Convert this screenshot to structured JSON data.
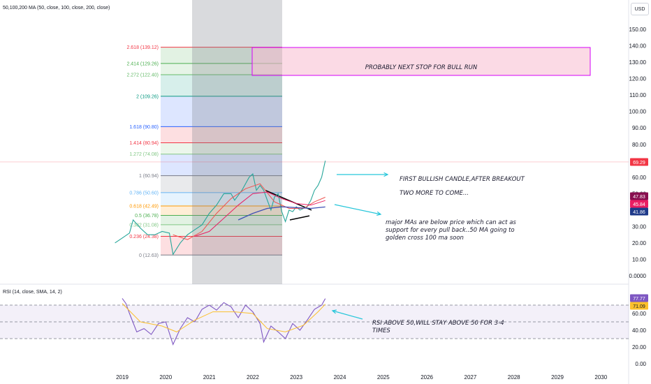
{
  "currency_button": "USD",
  "chart_data": [
    {
      "type": "line",
      "title": "50,100,200 MA (50, close, 100, close, 200, close)",
      "y_ticks": [
        "150.00",
        "140.00",
        "130.00",
        "120.00",
        "110.00",
        "100.00",
        "90.00",
        "80.00",
        "70.00",
        "60.00",
        "50.00",
        "40.00",
        "30.00",
        "20.00",
        "10.00",
        "0.0000"
      ],
      "x_ticks": [
        "2019",
        "2020",
        "2021",
        "2022",
        "2023",
        "2024",
        "2025",
        "2026",
        "2027",
        "2028",
        "2029",
        "2030"
      ],
      "price_labels": [
        {
          "text": "69.29",
          "color": "#f23645"
        },
        {
          "text": "47.83",
          "color": "#880e4f"
        },
        {
          "text": "45.84",
          "color": "#e91e63"
        },
        {
          "text": "41.86",
          "color": "#1e3a8a"
        }
      ],
      "fib_levels": [
        {
          "ratio": 0,
          "label": "0 (12.63)",
          "color": "#787b86"
        },
        {
          "ratio": 0.236,
          "label": "0.236 (24.38)",
          "color": "#f23645"
        },
        {
          "ratio": 0.382,
          "label": "0.382 (31.08)",
          "color": "#81c784"
        },
        {
          "ratio": 0.5,
          "label": "0.5 (36.78)",
          "color": "#4caf50"
        },
        {
          "ratio": 0.618,
          "label": "0.618 (42.49)",
          "color": "#ff9800"
        },
        {
          "ratio": 0.786,
          "label": "0.786 (50.60)",
          "color": "#64b5f6"
        },
        {
          "ratio": 1,
          "label": "1 (60.94)",
          "color": "#787b86"
        },
        {
          "ratio": 1.272,
          "label": "1.272 (74.08)",
          "color": "#81c784"
        },
        {
          "ratio": 1.414,
          "label": "1.414 (80.94)",
          "color": "#f23645"
        },
        {
          "ratio": 1.618,
          "label": "1.618 (90.80)",
          "color": "#2962ff"
        },
        {
          "ratio": 2,
          "label": "2 (109.26)",
          "color": "#089981"
        },
        {
          "ratio": 2.272,
          "label": "2.272 (122.40)",
          "color": "#66bb6a"
        },
        {
          "ratio": 2.414,
          "label": "2.414 (129.26)",
          "color": "#4caf50"
        },
        {
          "ratio": 2.618,
          "label": "2.618 (139.12)",
          "color": "#f23645"
        }
      ],
      "series": [
        {
          "name": "Price",
          "values": [
            {
              "x": "2018-11",
              "y": 20
            },
            {
              "x": "2019-01",
              "y": 23
            },
            {
              "x": "2019-03",
              "y": 26
            },
            {
              "x": "2019-04",
              "y": 34
            },
            {
              "x": "2019-06",
              "y": 29
            },
            {
              "x": "2019-08",
              "y": 25
            },
            {
              "x": "2019-10",
              "y": 25
            },
            {
              "x": "2019-12",
              "y": 27
            },
            {
              "x": "2020-02",
              "y": 26
            },
            {
              "x": "2020-03",
              "y": 13
            },
            {
              "x": "2020-05",
              "y": 20
            },
            {
              "x": "2020-07",
              "y": 25
            },
            {
              "x": "2020-09",
              "y": 28
            },
            {
              "x": "2020-11",
              "y": 31
            },
            {
              "x": "2021-01",
              "y": 38
            },
            {
              "x": "2021-03",
              "y": 43
            },
            {
              "x": "2021-05",
              "y": 50
            },
            {
              "x": "2021-07",
              "y": 50
            },
            {
              "x": "2021-08",
              "y": 46
            },
            {
              "x": "2021-10",
              "y": 52
            },
            {
              "x": "2021-12",
              "y": 60
            },
            {
              "x": "2022-01",
              "y": 62
            },
            {
              "x": "2022-02",
              "y": 52
            },
            {
              "x": "2022-03",
              "y": 55
            },
            {
              "x": "2022-04",
              "y": 52
            },
            {
              "x": "2022-05",
              "y": 46
            },
            {
              "x": "2022-06",
              "y": 40
            },
            {
              "x": "2022-07",
              "y": 48
            },
            {
              "x": "2022-08",
              "y": 50
            },
            {
              "x": "2022-09",
              "y": 39
            },
            {
              "x": "2022-10",
              "y": 33
            },
            {
              "x": "2022-11",
              "y": 40
            },
            {
              "x": "2022-12",
              "y": 39
            },
            {
              "x": "2023-01",
              "y": 42
            },
            {
              "x": "2023-02",
              "y": 40
            },
            {
              "x": "2023-03",
              "y": 41
            },
            {
              "x": "2023-04",
              "y": 42
            },
            {
              "x": "2023-05",
              "y": 46
            },
            {
              "x": "2023-06",
              "y": 52
            },
            {
              "x": "2023-07",
              "y": 55
            },
            {
              "x": "2023-08",
              "y": 60
            },
            {
              "x": "2023-09",
              "y": 70
            }
          ]
        },
        {
          "name": "MA 50",
          "values": [
            {
              "x": "2020-03",
              "y": 25
            },
            {
              "x": "2020-07",
              "y": 22
            },
            {
              "x": "2020-11",
              "y": 27
            },
            {
              "x": "2021-03",
              "y": 38
            },
            {
              "x": "2021-07",
              "y": 47
            },
            {
              "x": "2021-11",
              "y": 53
            },
            {
              "x": "2022-03",
              "y": 56
            },
            {
              "x": "2022-07",
              "y": 45
            },
            {
              "x": "2022-11",
              "y": 41
            },
            {
              "x": "2023-03",
              "y": 41
            },
            {
              "x": "2023-06",
              "y": 45
            },
            {
              "x": "2023-09",
              "y": 47.8
            }
          ]
        },
        {
          "name": "MA 100",
          "values": [
            {
              "x": "2020-09",
              "y": 24
            },
            {
              "x": "2021-01",
              "y": 27
            },
            {
              "x": "2021-05",
              "y": 35
            },
            {
              "x": "2021-09",
              "y": 43
            },
            {
              "x": "2022-01",
              "y": 50
            },
            {
              "x": "2022-05",
              "y": 51
            },
            {
              "x": "2022-09",
              "y": 47
            },
            {
              "x": "2023-01",
              "y": 44
            },
            {
              "x": "2023-05",
              "y": 43
            },
            {
              "x": "2023-09",
              "y": 45.8
            }
          ]
        },
        {
          "name": "MA 200",
          "values": [
            {
              "x": "2021-09",
              "y": 34
            },
            {
              "x": "2022-01",
              "y": 38
            },
            {
              "x": "2022-05",
              "y": 41
            },
            {
              "x": "2022-09",
              "y": 42
            },
            {
              "x": "2023-01",
              "y": 41.5
            },
            {
              "x": "2023-05",
              "y": 41
            },
            {
              "x": "2023-09",
              "y": 41.9
            }
          ]
        }
      ],
      "annotations": [
        "PROBABLY NEXT STOP FOR BULL RUN",
        "FIRST BULLISH CANDLE,AFTER BREAKOUT",
        "TWO MORE TO COME...",
        "major MAs are below price which can act as",
        "support for every pull back..50 MA going to",
        "golden cross 100 ma soon"
      ]
    },
    {
      "type": "line",
      "title": "RSI (14, close, SMA, 14, 2)",
      "y_ticks": [
        "60.00",
        "40.00",
        "20.00",
        "0.00"
      ],
      "band": [
        30,
        70
      ],
      "midline": 50,
      "price_labels": [
        {
          "text": "77.77",
          "color": "#7e57c2"
        },
        {
          "text": "71.09",
          "color": "#fbc02d"
        }
      ],
      "series": [
        {
          "name": "RSI",
          "values": [
            {
              "x": "2019-01",
              "y": 78
            },
            {
              "x": "2019-02",
              "y": 72
            },
            {
              "x": "2019-03",
              "y": 60
            },
            {
              "x": "2019-05",
              "y": 38
            },
            {
              "x": "2019-07",
              "y": 42
            },
            {
              "x": "2019-09",
              "y": 35
            },
            {
              "x": "2019-11",
              "y": 48
            },
            {
              "x": "2020-01",
              "y": 50
            },
            {
              "x": "2020-03",
              "y": 23
            },
            {
              "x": "2020-05",
              "y": 42
            },
            {
              "x": "2020-07",
              "y": 55
            },
            {
              "x": "2020-09",
              "y": 50
            },
            {
              "x": "2020-11",
              "y": 65
            },
            {
              "x": "2021-01",
              "y": 70
            },
            {
              "x": "2021-03",
              "y": 64
            },
            {
              "x": "2021-05",
              "y": 73
            },
            {
              "x": "2021-07",
              "y": 68
            },
            {
              "x": "2021-09",
              "y": 55
            },
            {
              "x": "2021-11",
              "y": 70
            },
            {
              "x": "2022-01",
              "y": 62
            },
            {
              "x": "2022-03",
              "y": 48
            },
            {
              "x": "2022-04",
              "y": 26
            },
            {
              "x": "2022-06",
              "y": 45
            },
            {
              "x": "2022-08",
              "y": 38
            },
            {
              "x": "2022-10",
              "y": 30
            },
            {
              "x": "2022-12",
              "y": 48
            },
            {
              "x": "2023-02",
              "y": 40
            },
            {
              "x": "2023-04",
              "y": 52
            },
            {
              "x": "2023-06",
              "y": 65
            },
            {
              "x": "2023-08",
              "y": 70
            },
            {
              "x": "2023-09",
              "y": 77.77
            }
          ]
        },
        {
          "name": "RSI MA",
          "values": [
            {
              "x": "2019-01",
              "y": 72
            },
            {
              "x": "2019-06",
              "y": 50
            },
            {
              "x": "2019-12",
              "y": 45
            },
            {
              "x": "2020-04",
              "y": 38
            },
            {
              "x": "2020-09",
              "y": 52
            },
            {
              "x": "2021-02",
              "y": 62
            },
            {
              "x": "2021-08",
              "y": 62
            },
            {
              "x": "2022-01",
              "y": 60
            },
            {
              "x": "2022-05",
              "y": 42
            },
            {
              "x": "2022-10",
              "y": 38
            },
            {
              "x": "2023-03",
              "y": 46
            },
            {
              "x": "2023-07",
              "y": 62
            },
            {
              "x": "2023-09",
              "y": 71.09
            }
          ]
        }
      ],
      "annotations": [
        "RSI ABOVE 50,WILL STAY ABOVE 50 FOR 3-4",
        "TIMES"
      ]
    }
  ]
}
